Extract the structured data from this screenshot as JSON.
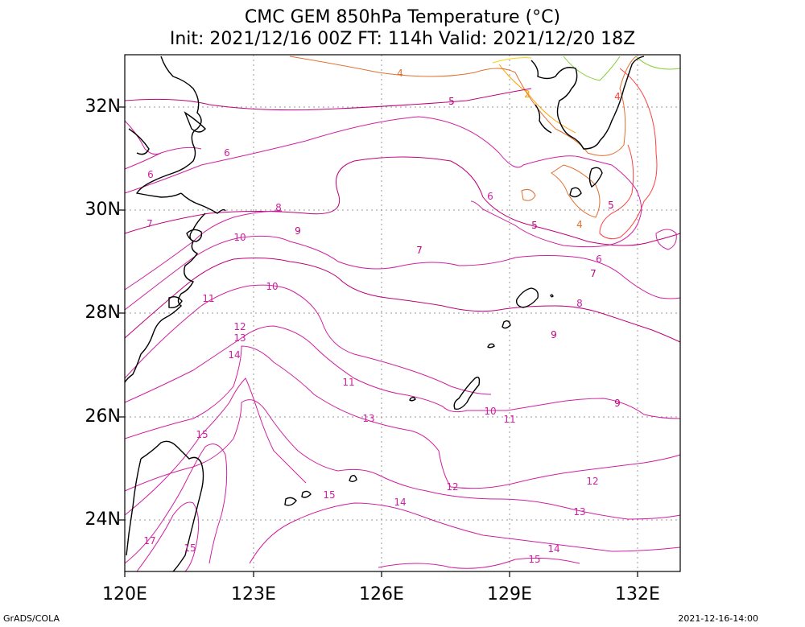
{
  "title": {
    "line1": "CMC GEM 850hPa Temperature (°C)",
    "line2": "Init: 2021/12/16 00Z  FT: 114h  Valid: 2021/12/20 18Z"
  },
  "axes": {
    "y_labels": [
      "32N",
      "30N",
      "28N",
      "26N",
      "24N"
    ],
    "x_labels": [
      "120E",
      "123E",
      "126E",
      "129E",
      "132E"
    ]
  },
  "footer": {
    "left": "GrADS/COLA",
    "right": "2021-12-16-14:00"
  },
  "contour_labels": [
    {
      "text": "4",
      "color": "#e07030"
    },
    {
      "text": "5",
      "color": "#c0007a"
    },
    {
      "text": "2",
      "color": "#ffa000"
    },
    {
      "text": "4",
      "color": "#ff4040"
    },
    {
      "text": "6",
      "color": "#d020a0"
    },
    {
      "text": "6",
      "color": "#d020a0"
    },
    {
      "text": "7",
      "color": "#d020a0"
    },
    {
      "text": "8",
      "color": "#d020a0"
    },
    {
      "text": "9",
      "color": "#c0007a"
    },
    {
      "text": "10",
      "color": "#d020a0"
    },
    {
      "text": "10",
      "color": "#d020a0"
    },
    {
      "text": "11",
      "color": "#d020a0"
    },
    {
      "text": "12",
      "color": "#d020a0"
    },
    {
      "text": "13",
      "color": "#d020a0"
    },
    {
      "text": "14",
      "color": "#d020a0"
    },
    {
      "text": "6",
      "color": "#d020a0"
    },
    {
      "text": "5",
      "color": "#c0007a"
    },
    {
      "text": "4",
      "color": "#e07030"
    },
    {
      "text": "5",
      "color": "#c0007a"
    },
    {
      "text": "7",
      "color": "#c0007a"
    },
    {
      "text": "6",
      "color": "#d020a0"
    },
    {
      "text": "7",
      "color": "#c0007a"
    },
    {
      "text": "8",
      "color": "#d020a0"
    },
    {
      "text": "9",
      "color": "#c0007a"
    },
    {
      "text": "11",
      "color": "#d020a0"
    },
    {
      "text": "13",
      "color": "#d020a0"
    },
    {
      "text": "10",
      "color": "#d020a0"
    },
    {
      "text": "11",
      "color": "#d020a0"
    },
    {
      "text": "9",
      "color": "#c0007a"
    },
    {
      "text": "15",
      "color": "#d020a0"
    },
    {
      "text": "12",
      "color": "#d020a0"
    },
    {
      "text": "12",
      "color": "#d020a0"
    },
    {
      "text": "15",
      "color": "#d020a0"
    },
    {
      "text": "14",
      "color": "#d020a0"
    },
    {
      "text": "13",
      "color": "#d020a0"
    },
    {
      "text": "14",
      "color": "#d020a0"
    },
    {
      "text": "15",
      "color": "#d020a0"
    },
    {
      "text": "17",
      "color": "#d020a0"
    },
    {
      "text": "15",
      "color": "#d020a0"
    }
  ]
}
